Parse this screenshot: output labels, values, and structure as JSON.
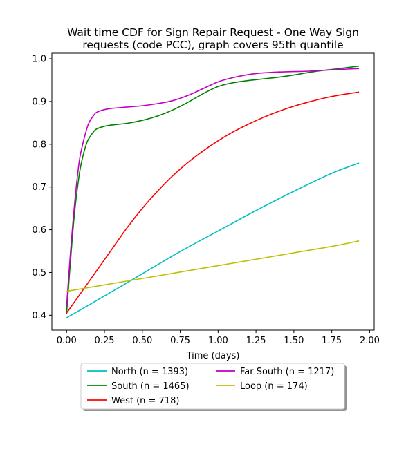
{
  "chart_data": {
    "type": "line",
    "title_lines": [
      "Wait time CDF for Sign Repair Request - One Way Sign",
      "requests (code PCC), graph covers 95th quantile"
    ],
    "xlabel": "Time (days)",
    "ylabel": "",
    "xlim": [
      -0.097,
      2.03
    ],
    "ylim": [
      0.365,
      1.013
    ],
    "xticks": [
      0.0,
      0.25,
      0.5,
      0.75,
      1.0,
      1.25,
      1.5,
      1.75,
      2.0
    ],
    "xtick_labels": [
      "0.00",
      "0.25",
      "0.50",
      "0.75",
      "1.00",
      "1.25",
      "1.50",
      "1.75",
      "2.00"
    ],
    "yticks": [
      0.4,
      0.5,
      0.6,
      0.7,
      0.8,
      0.9,
      1.0
    ],
    "ytick_labels": [
      "0.4",
      "0.5",
      "0.6",
      "0.7",
      "0.8",
      "0.9",
      "1.0"
    ],
    "grid": false,
    "legend_placement": "below-center",
    "legend_columns": 2,
    "series": [
      {
        "name": "North (n = 1393)",
        "color": "#00bfbf",
        "x": [
          0.0,
          0.25,
          0.5,
          0.75,
          1.0,
          1.25,
          1.5,
          1.75,
          1.93
        ],
        "y": [
          0.394,
          0.445,
          0.497,
          0.549,
          0.597,
          0.645,
          0.69,
          0.732,
          0.756
        ]
      },
      {
        "name": "South (n = 1465)",
        "color": "#008000",
        "x": [
          0.0,
          0.02,
          0.05,
          0.08,
          0.1,
          0.13,
          0.15,
          0.18,
          0.2,
          0.25,
          0.3,
          0.4,
          0.5,
          0.6,
          0.7,
          0.8,
          0.9,
          1.0,
          1.1,
          1.2,
          1.3,
          1.4,
          1.5,
          1.6,
          1.7,
          1.8,
          1.93
        ],
        "y": [
          0.403,
          0.5,
          0.63,
          0.72,
          0.76,
          0.8,
          0.815,
          0.83,
          0.836,
          0.842,
          0.845,
          0.849,
          0.856,
          0.866,
          0.88,
          0.898,
          0.918,
          0.935,
          0.944,
          0.949,
          0.953,
          0.957,
          0.962,
          0.968,
          0.973,
          0.977,
          0.983
        ]
      },
      {
        "name": "West (n = 718)",
        "color": "#ff0000",
        "x": [
          0.0,
          0.1,
          0.2,
          0.3,
          0.4,
          0.5,
          0.6,
          0.7,
          0.8,
          0.9,
          1.0,
          1.1,
          1.2,
          1.3,
          1.4,
          1.5,
          1.6,
          1.7,
          1.8,
          1.93
        ],
        "y": [
          0.405,
          0.455,
          0.505,
          0.555,
          0.605,
          0.65,
          0.69,
          0.726,
          0.757,
          0.784,
          0.808,
          0.829,
          0.847,
          0.863,
          0.877,
          0.889,
          0.899,
          0.908,
          0.915,
          0.922
        ]
      },
      {
        "name": "Far South (n = 1217)",
        "color": "#bf00bf",
        "x": [
          0.0,
          0.02,
          0.05,
          0.08,
          0.1,
          0.13,
          0.15,
          0.18,
          0.2,
          0.25,
          0.3,
          0.4,
          0.5,
          0.6,
          0.7,
          0.8,
          0.9,
          1.0,
          1.1,
          1.2,
          1.3,
          1.4,
          1.5,
          1.6,
          1.7,
          1.8,
          1.93
        ],
        "y": [
          0.42,
          0.52,
          0.65,
          0.75,
          0.79,
          0.832,
          0.852,
          0.868,
          0.875,
          0.881,
          0.884,
          0.887,
          0.89,
          0.895,
          0.902,
          0.914,
          0.93,
          0.946,
          0.956,
          0.963,
          0.967,
          0.969,
          0.97,
          0.971,
          0.973,
          0.975,
          0.977
        ]
      },
      {
        "name": "Loop (n = 174)",
        "color": "#bfbf00",
        "x": [
          0.0,
          0.25,
          0.5,
          0.75,
          1.0,
          1.25,
          1.5,
          1.75,
          1.93
        ],
        "y": [
          0.456,
          0.471,
          0.486,
          0.501,
          0.516,
          0.531,
          0.546,
          0.561,
          0.574
        ]
      }
    ]
  }
}
